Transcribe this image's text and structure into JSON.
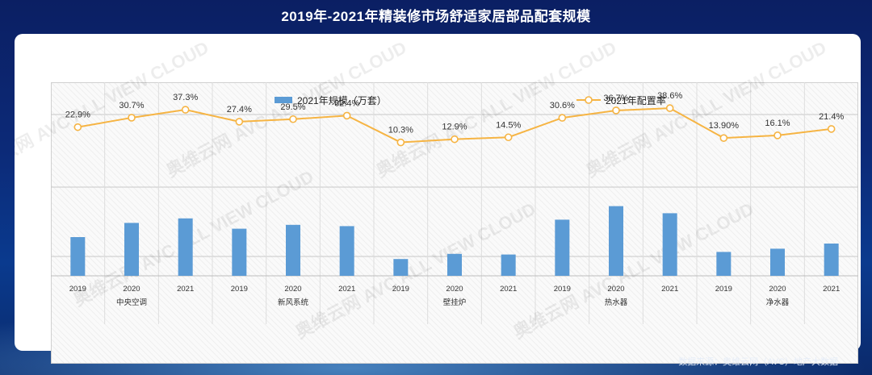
{
  "title": "2019年-2021年精装修市场舒适家居部品配套规模",
  "source_note": "数据来源：奥维云网（AVC）地产大数据",
  "watermark": "奥维云网 AVC ALL VIEW CLOUD",
  "colors": {
    "bar": "#5b9bd5",
    "line": "#f6b443",
    "point_fill": "#ffffff",
    "label": "#333333"
  },
  "chart_data": {
    "type": "bar",
    "title": "2019年-2021年精装修市场舒适家居部品配套规模",
    "categories": [
      "中央空调",
      "新风系统",
      "壁挂炉",
      "热水器",
      "净水器"
    ],
    "years": [
      "2019",
      "2020",
      "2021"
    ],
    "x": [
      "2019",
      "2020",
      "2021",
      "2019",
      "2020",
      "2021",
      "2019",
      "2020",
      "2021",
      "2019",
      "2020",
      "2021",
      "2019",
      "2020",
      "2021"
    ],
    "series": [
      {
        "name": "2021年规模（万套）",
        "kind": "bar",
        "axis": "left",
        "values": [
          60,
          82,
          89,
          73,
          79,
          77,
          26,
          34,
          33,
          87,
          108,
          97,
          37,
          42,
          50
        ]
      },
      {
        "name": "2021年配置率",
        "kind": "line",
        "axis": "right",
        "values": [
          22.9,
          30.7,
          37.3,
          27.4,
          29.5,
          32.4,
          10.3,
          12.9,
          14.5,
          30.6,
          36.7,
          38.6,
          13.9,
          16.1,
          21.4
        ],
        "labels": [
          "22.9%",
          "30.7%",
          "37.3%",
          "27.4%",
          "29.5%",
          "32.4%",
          "10.3%",
          "12.9%",
          "14.5%",
          "30.6%",
          "36.7%",
          "38.6%",
          "13.90%",
          "16.1%",
          "21.4%"
        ]
      }
    ],
    "ylim_bar": [
      0,
      300
    ],
    "ylim_line": [
      -100,
      60
    ],
    "legend_position": "top",
    "grid": true
  }
}
